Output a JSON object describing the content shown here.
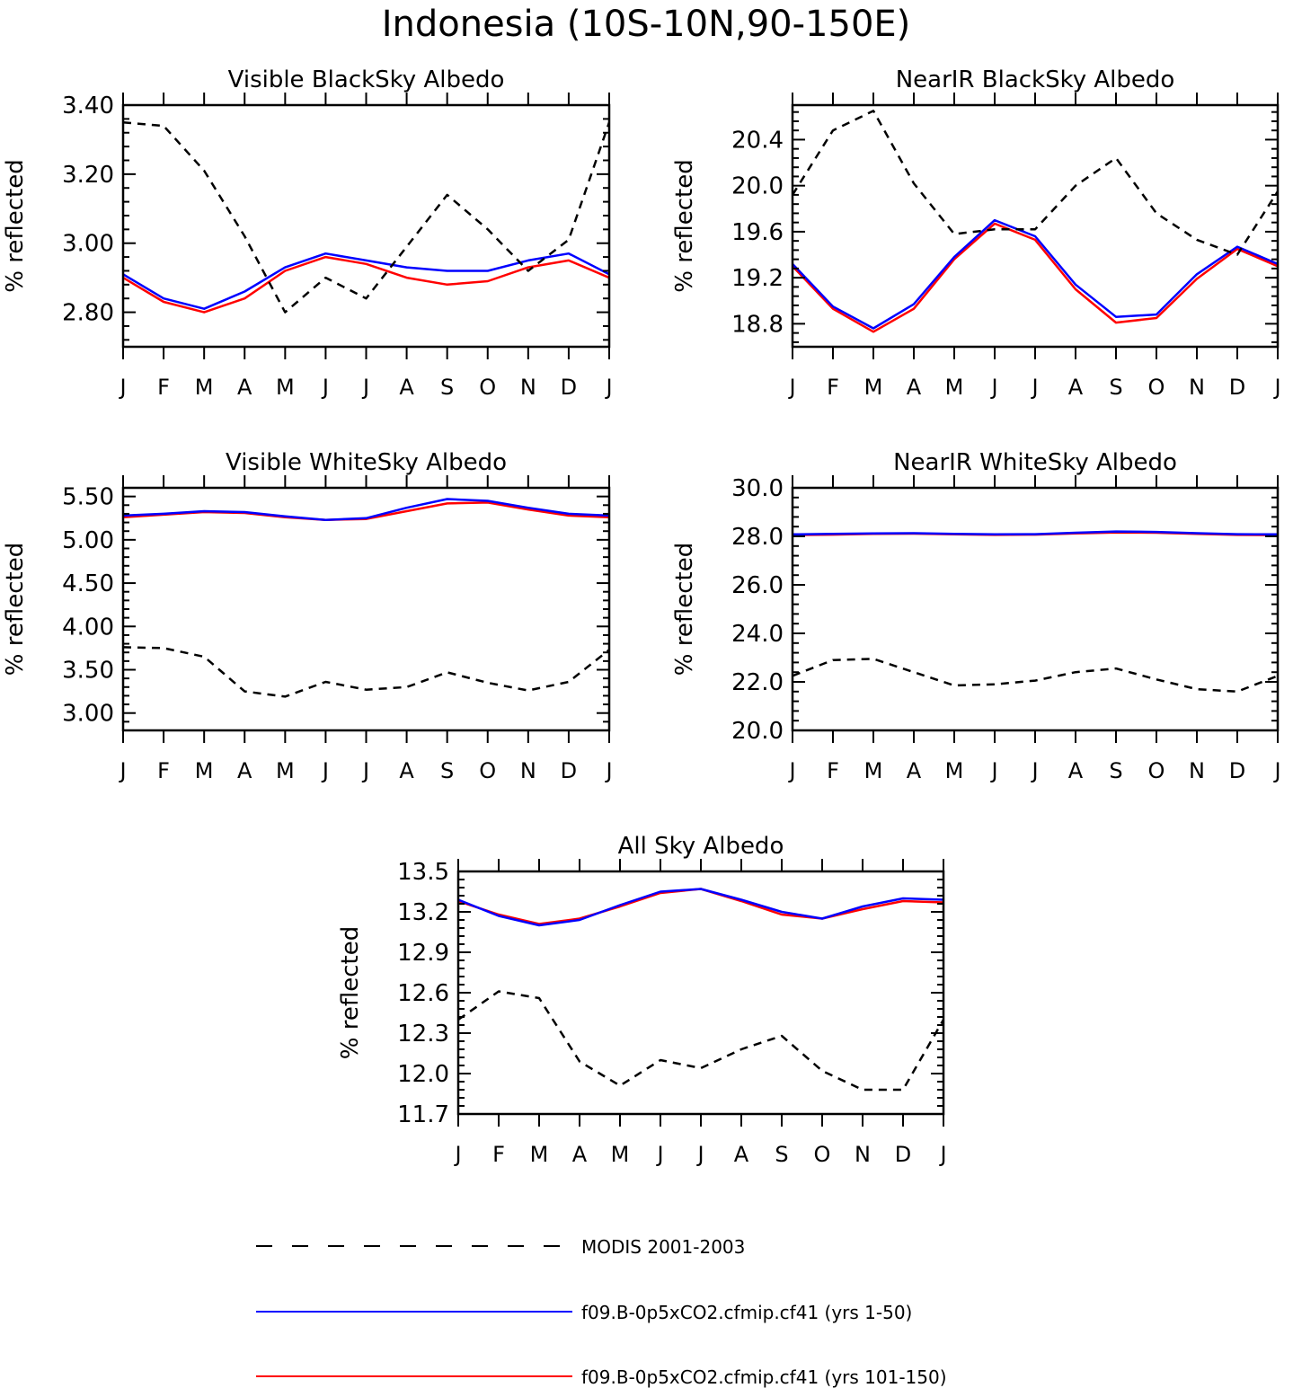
{
  "title": "Indonesia (10S-10N,90-150E)",
  "months": [
    "J",
    "F",
    "M",
    "A",
    "M",
    "J",
    "J",
    "A",
    "S",
    "O",
    "N",
    "D",
    "J"
  ],
  "colors": {
    "modis": "#000000",
    "run1": "#0000ff",
    "run2": "#ff0000"
  },
  "legend": [
    {
      "label": "MODIS 2001-2003",
      "color": "#000000",
      "style": "dashed"
    },
    {
      "label": "f09.B-0p5xCO2.cfmip.cf41 (yrs 1-50)",
      "color": "#0000ff",
      "style": "solid"
    },
    {
      "label": "f09.B-0p5xCO2.cfmip.cf41 (yrs 101-150)",
      "color": "#ff0000",
      "style": "solid"
    }
  ],
  "chart_data": [
    {
      "type": "line",
      "title": "Visible BlackSky Albedo",
      "ylabel": "% reflected",
      "x": [
        "J",
        "F",
        "M",
        "A",
        "M",
        "J",
        "J",
        "A",
        "S",
        "O",
        "N",
        "D",
        "J"
      ],
      "ylim": [
        2.7,
        3.4
      ],
      "yticks": [
        2.8,
        3.0,
        3.2,
        3.4
      ],
      "yticklabels": [
        "2.80",
        "3.00",
        "3.20",
        "3.40"
      ],
      "yminor": 0.04,
      "series": [
        {
          "name": "MODIS 2001-2003",
          "values": [
            3.35,
            3.34,
            3.21,
            3.02,
            2.8,
            2.9,
            2.84,
            2.99,
            3.14,
            3.04,
            2.92,
            3.01,
            3.35
          ]
        },
        {
          "name": "f09.B-0p5xCO2.cfmip.cf41 (yrs 1-50)",
          "values": [
            2.91,
            2.84,
            2.81,
            2.86,
            2.93,
            2.97,
            2.95,
            2.93,
            2.92,
            2.92,
            2.95,
            2.97,
            2.91
          ]
        },
        {
          "name": "f09.B-0p5xCO2.cfmip.cf41 (yrs 101-150)",
          "values": [
            2.9,
            2.83,
            2.8,
            2.84,
            2.92,
            2.96,
            2.94,
            2.9,
            2.88,
            2.89,
            2.93,
            2.95,
            2.9
          ]
        }
      ]
    },
    {
      "type": "line",
      "title": "NearIR BlackSky Albedo",
      "ylabel": "% reflected",
      "x": [
        "J",
        "F",
        "M",
        "A",
        "M",
        "J",
        "J",
        "A",
        "S",
        "O",
        "N",
        "D",
        "J"
      ],
      "ylim": [
        18.6,
        20.7
      ],
      "yticks": [
        18.8,
        19.2,
        19.6,
        20.0,
        20.4
      ],
      "yticklabels": [
        "18.8",
        "19.2",
        "19.6",
        "20.0",
        "20.4"
      ],
      "yminor": 0.08,
      "series": [
        {
          "name": "MODIS 2001-2003",
          "values": [
            19.92,
            20.48,
            20.65,
            20.02,
            19.58,
            19.62,
            19.62,
            20.0,
            20.24,
            19.76,
            19.53,
            19.4,
            19.95
          ]
        },
        {
          "name": "f09.B-0p5xCO2.cfmip.cf41 (yrs 1-50)",
          "values": [
            19.32,
            18.95,
            18.76,
            18.97,
            19.38,
            19.7,
            19.56,
            19.14,
            18.86,
            18.88,
            19.23,
            19.47,
            19.32
          ]
        },
        {
          "name": "f09.B-0p5xCO2.cfmip.cf41 (yrs 101-150)",
          "values": [
            19.3,
            18.93,
            18.73,
            18.93,
            19.36,
            19.67,
            19.53,
            19.1,
            18.81,
            18.85,
            19.19,
            19.45,
            19.3
          ]
        }
      ]
    },
    {
      "type": "line",
      "title": "Visible WhiteSky Albedo",
      "ylabel": "% reflected",
      "x": [
        "J",
        "F",
        "M",
        "A",
        "M",
        "J",
        "J",
        "A",
        "S",
        "O",
        "N",
        "D",
        "J"
      ],
      "ylim": [
        2.8,
        5.6
      ],
      "yticks": [
        3.0,
        3.5,
        4.0,
        4.5,
        5.0,
        5.5
      ],
      "yticklabels": [
        "3.00",
        "3.50",
        "4.00",
        "4.50",
        "5.00",
        "5.50"
      ],
      "yminor": 0.1,
      "series": [
        {
          "name": "MODIS 2001-2003",
          "values": [
            3.76,
            3.75,
            3.65,
            3.25,
            3.19,
            3.36,
            3.27,
            3.3,
            3.47,
            3.35,
            3.26,
            3.36,
            3.73
          ]
        },
        {
          "name": "f09.B-0p5xCO2.cfmip.cf41 (yrs 1-50)",
          "values": [
            5.28,
            5.3,
            5.33,
            5.32,
            5.27,
            5.23,
            5.25,
            5.37,
            5.47,
            5.45,
            5.37,
            5.3,
            5.28
          ]
        },
        {
          "name": "f09.B-0p5xCO2.cfmip.cf41 (yrs 101-150)",
          "values": [
            5.26,
            5.29,
            5.32,
            5.31,
            5.26,
            5.23,
            5.24,
            5.33,
            5.42,
            5.43,
            5.35,
            5.28,
            5.26
          ]
        }
      ]
    },
    {
      "type": "line",
      "title": "NearIR WhiteSky Albedo",
      "ylabel": "% reflected",
      "x": [
        "J",
        "F",
        "M",
        "A",
        "M",
        "J",
        "J",
        "A",
        "S",
        "O",
        "N",
        "D",
        "J"
      ],
      "ylim": [
        20.0,
        30.0
      ],
      "yticks": [
        20.0,
        22.0,
        24.0,
        26.0,
        28.0,
        30.0
      ],
      "yticklabels": [
        "20.0",
        "22.0",
        "24.0",
        "26.0",
        "28.0",
        "30.0"
      ],
      "yminor": 0.4,
      "series": [
        {
          "name": "MODIS 2001-2003",
          "values": [
            22.25,
            22.9,
            22.95,
            22.4,
            21.85,
            21.9,
            22.05,
            22.4,
            22.55,
            22.1,
            21.7,
            21.6,
            22.25
          ]
        },
        {
          "name": "f09.B-0p5xCO2.cfmip.cf41 (yrs 1-50)",
          "values": [
            28.08,
            28.1,
            28.12,
            28.13,
            28.1,
            28.08,
            28.09,
            28.15,
            28.2,
            28.18,
            28.13,
            28.09,
            28.08
          ]
        },
        {
          "name": "f09.B-0p5xCO2.cfmip.cf41 (yrs 101-150)",
          "values": [
            28.05,
            28.07,
            28.1,
            28.11,
            28.08,
            28.06,
            28.07,
            28.12,
            28.16,
            28.15,
            28.1,
            28.06,
            28.05
          ]
        }
      ]
    },
    {
      "type": "line",
      "title": "All Sky Albedo",
      "ylabel": "% reflected",
      "x": [
        "J",
        "F",
        "M",
        "A",
        "M",
        "J",
        "J",
        "A",
        "S",
        "O",
        "N",
        "D",
        "J"
      ],
      "ylim": [
        11.7,
        13.5
      ],
      "yticks": [
        11.7,
        12.0,
        12.3,
        12.6,
        12.9,
        13.2,
        13.5
      ],
      "yticklabels": [
        "11.7",
        "12.0",
        "12.3",
        "12.6",
        "12.9",
        "13.2",
        "13.5"
      ],
      "yminor": 0.06,
      "series": [
        {
          "name": "MODIS 2001-2003",
          "values": [
            12.4,
            12.61,
            12.56,
            12.09,
            11.91,
            12.1,
            12.04,
            12.18,
            12.28,
            12.02,
            11.88,
            11.88,
            12.4
          ]
        },
        {
          "name": "f09.B-0p5xCO2.cfmip.cf41 (yrs 1-50)",
          "values": [
            13.29,
            13.17,
            13.1,
            13.14,
            13.25,
            13.35,
            13.37,
            13.29,
            13.2,
            13.15,
            13.24,
            13.3,
            13.29
          ]
        },
        {
          "name": "f09.B-0p5xCO2.cfmip.cf41 (yrs 101-150)",
          "values": [
            13.28,
            13.18,
            13.11,
            13.15,
            13.24,
            13.34,
            13.37,
            13.28,
            13.18,
            13.15,
            13.22,
            13.28,
            13.27
          ]
        }
      ]
    }
  ]
}
